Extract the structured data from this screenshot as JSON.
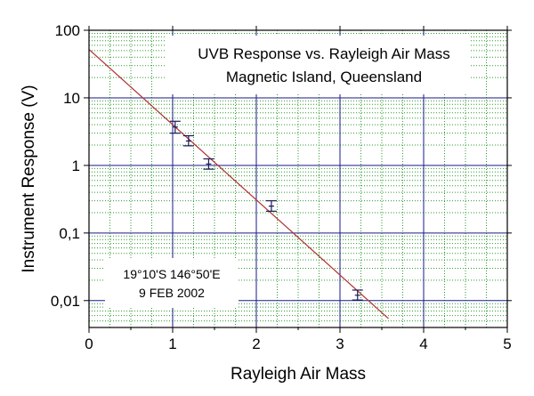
{
  "chart_data": {
    "type": "scatter",
    "title": "UVB Response vs. Rayleigh Air Mass",
    "subtitle": "Magnetic Island, Queensland",
    "xlabel": "Rayleigh Air Mass",
    "ylabel": "Instrument Response (V)",
    "xlim": [
      0,
      5
    ],
    "ylim": [
      0.004,
      100
    ],
    "y_scale": "log",
    "grid": true,
    "x_ticks": [
      "0",
      "1",
      "2",
      "3",
      "4",
      "5"
    ],
    "y_ticks": [
      "0,01",
      "0,1",
      "1",
      "10",
      "100"
    ],
    "points": [
      {
        "x": 1.03,
        "y": 3.7,
        "err_low": 3.0,
        "err_high": 4.5
      },
      {
        "x": 1.19,
        "y": 2.3,
        "err_low": 1.95,
        "err_high": 2.75
      },
      {
        "x": 1.43,
        "y": 1.05,
        "err_low": 0.88,
        "err_high": 1.25
      },
      {
        "x": 2.18,
        "y": 0.25,
        "err_low": 0.21,
        "err_high": 0.3
      },
      {
        "x": 3.21,
        "y": 0.012,
        "err_low": 0.0102,
        "err_high": 0.0143
      }
    ],
    "fit_line": {
      "x": [
        0,
        3.58
      ],
      "y": [
        52,
        0.0054
      ]
    },
    "location_label": "19°10'S 146°50'E",
    "date_label": "9 FEB 2002",
    "colors": {
      "grid_major": "#1a1a8a",
      "grid_minor": "#2f9a2f",
      "fit_line": "#b03030",
      "points": "#1a1a5a"
    }
  }
}
